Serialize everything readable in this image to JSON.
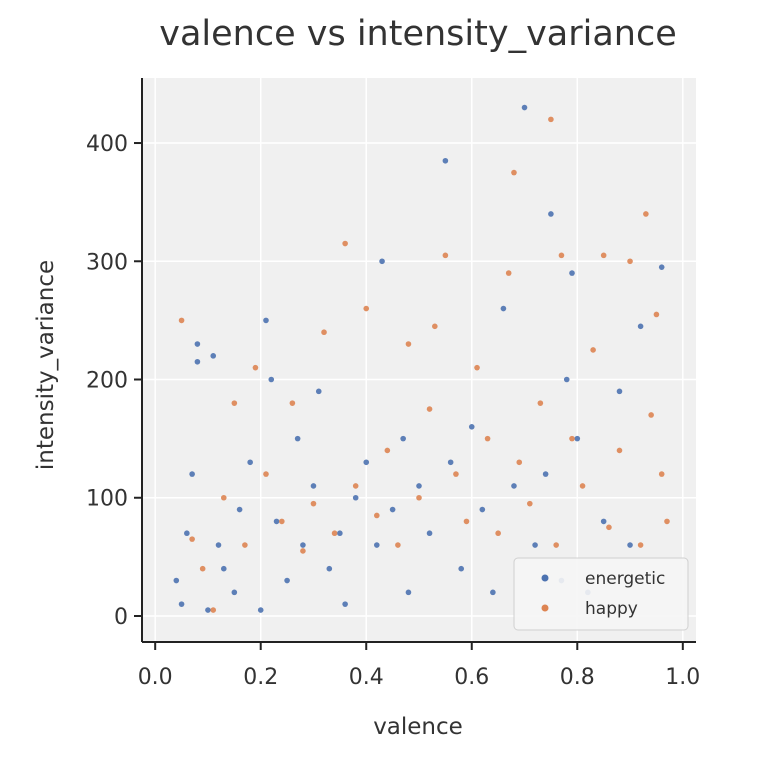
{
  "chart_data": {
    "type": "scatter",
    "title": "valence vs intensity_variance",
    "xlabel": "valence",
    "ylabel": "intensity_variance",
    "xlim": [
      -0.025,
      1.025
    ],
    "ylim": [
      -22,
      455
    ],
    "xticks": [
      0.0,
      0.2,
      0.4,
      0.6,
      0.8,
      1.0
    ],
    "xtick_labels": [
      "0.0",
      "0.2",
      "0.4",
      "0.6",
      "0.8",
      "1.0"
    ],
    "yticks": [
      0,
      100,
      200,
      300,
      400
    ],
    "ytick_labels": [
      "0",
      "100",
      "200",
      "300",
      "400"
    ],
    "grid": true,
    "legend_position": "bottom-right",
    "series": [
      {
        "name": "energetic",
        "color": "#4c72b0",
        "points": [
          [
            0.04,
            30
          ],
          [
            0.05,
            10
          ],
          [
            0.06,
            70
          ],
          [
            0.07,
            120
          ],
          [
            0.08,
            230
          ],
          [
            0.08,
            215
          ],
          [
            0.1,
            5
          ],
          [
            0.11,
            220
          ],
          [
            0.12,
            60
          ],
          [
            0.13,
            40
          ],
          [
            0.15,
            20
          ],
          [
            0.16,
            90
          ],
          [
            0.18,
            130
          ],
          [
            0.2,
            5
          ],
          [
            0.21,
            250
          ],
          [
            0.22,
            200
          ],
          [
            0.23,
            80
          ],
          [
            0.25,
            30
          ],
          [
            0.27,
            150
          ],
          [
            0.28,
            60
          ],
          [
            0.3,
            110
          ],
          [
            0.31,
            190
          ],
          [
            0.33,
            40
          ],
          [
            0.35,
            70
          ],
          [
            0.36,
            10
          ],
          [
            0.38,
            100
          ],
          [
            0.4,
            130
          ],
          [
            0.42,
            60
          ],
          [
            0.43,
            300
          ],
          [
            0.45,
            90
          ],
          [
            0.47,
            150
          ],
          [
            0.48,
            20
          ],
          [
            0.5,
            110
          ],
          [
            0.52,
            70
          ],
          [
            0.55,
            385
          ],
          [
            0.56,
            130
          ],
          [
            0.58,
            40
          ],
          [
            0.6,
            160
          ],
          [
            0.62,
            90
          ],
          [
            0.64,
            20
          ],
          [
            0.66,
            260
          ],
          [
            0.68,
            110
          ],
          [
            0.7,
            430
          ],
          [
            0.72,
            60
          ],
          [
            0.74,
            120
          ],
          [
            0.75,
            340
          ],
          [
            0.77,
            30
          ],
          [
            0.78,
            200
          ],
          [
            0.79,
            290
          ],
          [
            0.8,
            150
          ],
          [
            0.82,
            20
          ],
          [
            0.85,
            80
          ],
          [
            0.88,
            190
          ],
          [
            0.9,
            60
          ],
          [
            0.92,
            245
          ],
          [
            0.96,
            295
          ]
        ]
      },
      {
        "name": "happy",
        "color": "#dd8452",
        "points": [
          [
            0.05,
            250
          ],
          [
            0.07,
            65
          ],
          [
            0.09,
            40
          ],
          [
            0.11,
            5
          ],
          [
            0.13,
            100
          ],
          [
            0.15,
            180
          ],
          [
            0.17,
            60
          ],
          [
            0.19,
            210
          ],
          [
            0.21,
            120
          ],
          [
            0.24,
            80
          ],
          [
            0.26,
            180
          ],
          [
            0.28,
            55
          ],
          [
            0.3,
            95
          ],
          [
            0.32,
            240
          ],
          [
            0.34,
            70
          ],
          [
            0.36,
            315
          ],
          [
            0.38,
            110
          ],
          [
            0.4,
            260
          ],
          [
            0.42,
            85
          ],
          [
            0.44,
            140
          ],
          [
            0.46,
            60
          ],
          [
            0.48,
            230
          ],
          [
            0.5,
            100
          ],
          [
            0.52,
            175
          ],
          [
            0.53,
            245
          ],
          [
            0.55,
            305
          ],
          [
            0.57,
            120
          ],
          [
            0.59,
            80
          ],
          [
            0.61,
            210
          ],
          [
            0.63,
            150
          ],
          [
            0.65,
            70
          ],
          [
            0.67,
            290
          ],
          [
            0.68,
            375
          ],
          [
            0.69,
            130
          ],
          [
            0.71,
            95
          ],
          [
            0.73,
            180
          ],
          [
            0.75,
            420
          ],
          [
            0.76,
            60
          ],
          [
            0.77,
            305
          ],
          [
            0.79,
            150
          ],
          [
            0.81,
            110
          ],
          [
            0.83,
            225
          ],
          [
            0.85,
            305
          ],
          [
            0.86,
            75
          ],
          [
            0.88,
            140
          ],
          [
            0.9,
            300
          ],
          [
            0.92,
            60
          ],
          [
            0.93,
            340
          ],
          [
            0.94,
            170
          ],
          [
            0.95,
            255
          ],
          [
            0.96,
            120
          ],
          [
            0.97,
            80
          ]
        ]
      }
    ]
  }
}
